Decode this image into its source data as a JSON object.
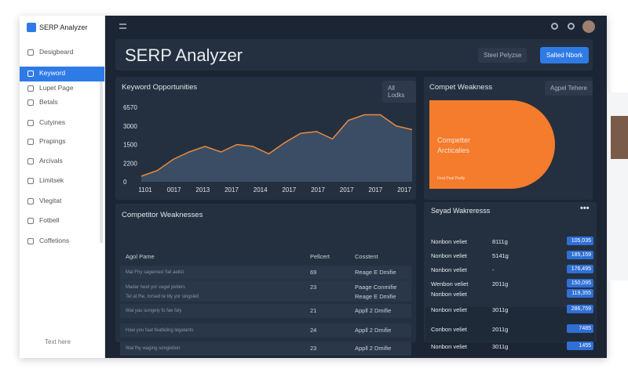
{
  "app": {
    "logo": "SERP Analyzer"
  },
  "sidebar": {
    "items": [
      "Desigbeard",
      "Keyword",
      "Lupet Page",
      "Betals",
      "Cutyines",
      "Prapings",
      "Arcivals",
      "Limitsek",
      "Vlegitat",
      "Fotbell",
      "Coffetions"
    ],
    "active": 1,
    "footer": "Text here"
  },
  "header": {
    "title": "SERP Analyzer",
    "buttons": [
      "Steel Pelyzse",
      "Salted Nbork"
    ]
  },
  "keyword_chart": {
    "title": "Keyword Opportunities",
    "button": "All Lodks",
    "y_labels": [
      "6570",
      "3000",
      "1500",
      "2200",
      "0"
    ],
    "x_labels": [
      "1101",
      "0017",
      "2013",
      "2017",
      "2014",
      "2017",
      "2017",
      "2017",
      "2017",
      "2017"
    ],
    "points": [
      0.3,
      0.6,
      1.2,
      1.6,
      1.9,
      1.6,
      2.0,
      1.9,
      1.5,
      2.1,
      2.6,
      2.7,
      2.3,
      3.3,
      3.6,
      3.6,
      3.0,
      2.8
    ]
  },
  "competitor_card": {
    "title": "Compet Weakness",
    "button": "Agpel Tehere",
    "headline": "Competter\nArcticalies",
    "note": "Feat Peal Pedly"
  },
  "weakness_table": {
    "title": "Competitor Weaknesses",
    "columns": [
      "Agol Pame",
      "Pellcert",
      "Cosstent"
    ],
    "rows": [
      [
        "Mal Fhy sagerned Sel aelist",
        "69",
        "Reage E Dmifie"
      ],
      [
        "Madar heet yor vagel petlers\nTel at fhe, torsed te tily yor singslell",
        "23",
        "Paage Conmifie\nReage E Dmifie"
      ],
      [
        "Wal yau sungeiy fo fae faly",
        "21",
        "Appll 2 Dmifie"
      ],
      [
        "Haw you faat featleling legalants",
        "24",
        "Appll 2 Dmifie"
      ],
      [
        "Wal fhy waging songletion",
        "23",
        "Appll 2 Dmifie"
      ]
    ]
  },
  "side_list": {
    "title": "Seyad Wakreresss",
    "rows": [
      [
        "Nonbon veliet",
        "8111g",
        "105,035"
      ],
      [
        "Nonbon veliet",
        "5141g",
        "185,159"
      ],
      [
        "Nonbon veliet",
        "-",
        "176,495"
      ],
      [
        "Wenbon veliet",
        "2011g",
        "150,095"
      ],
      [
        "Nonbon veliet",
        "",
        "119,355"
      ],
      [
        "Nonbon veliet",
        "3011g",
        "286,759"
      ]
    ],
    "extra_rows": [
      [
        "Conbon veliet",
        "2011g",
        "7485"
      ],
      [
        "Nonbon veliet",
        "3011g",
        "1455"
      ]
    ]
  }
}
